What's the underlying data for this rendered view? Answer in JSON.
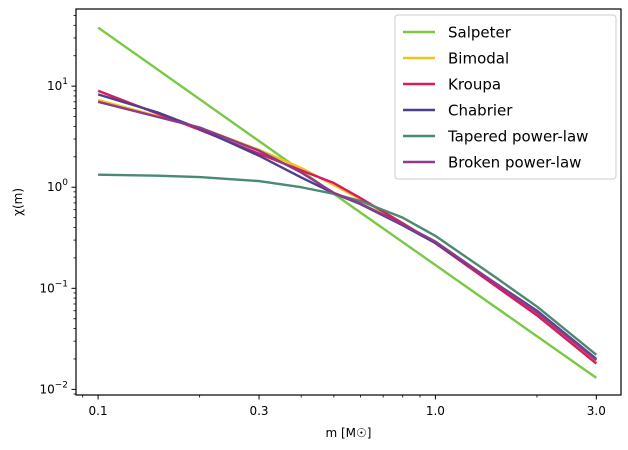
{
  "chart_data": {
    "type": "line",
    "title": "",
    "xlabel": "m [M☉]",
    "ylabel": "χ(m)",
    "x_scale": "log",
    "y_scale": "log",
    "xlim": [
      0.086,
      3.55
    ],
    "ylim": [
      0.0088,
      58
    ],
    "x_ticks": [
      {
        "value": 0.1,
        "label": "0.1"
      },
      {
        "value": 0.3,
        "label": "0.3"
      },
      {
        "value": 1.0,
        "label": "1.0"
      },
      {
        "value": 3.0,
        "label": "3.0"
      }
    ],
    "y_ticks": [
      {
        "value": 0.01,
        "base": "10",
        "exp": "−2"
      },
      {
        "value": 0.1,
        "base": "10",
        "exp": "−1"
      },
      {
        "value": 1,
        "base": "10",
        "exp": "0"
      },
      {
        "value": 10,
        "base": "10",
        "exp": "1"
      }
    ],
    "grid": false,
    "legend_position": "top-right",
    "series": [
      {
        "name": "Salpeter",
        "color": "#7ac943",
        "points": [
          [
            0.1,
            38
          ],
          [
            0.5,
            0.86
          ],
          [
            3.0,
            0.013
          ]
        ]
      },
      {
        "name": "Bimodal",
        "color": "#f0c419",
        "points": [
          [
            0.1,
            7.3
          ],
          [
            0.2,
            3.9
          ],
          [
            0.3,
            2.35
          ],
          [
            0.4,
            1.55
          ],
          [
            0.5,
            1.05
          ],
          [
            0.6,
            0.76
          ],
          [
            0.8,
            0.44
          ],
          [
            1.0,
            0.28
          ],
          [
            2.0,
            0.055
          ],
          [
            3.0,
            0.0185
          ]
        ]
      },
      {
        "name": "Kroupa",
        "color": "#d81b60",
        "points": [
          [
            0.1,
            9.0
          ],
          [
            0.2,
            3.7
          ],
          [
            0.3,
            2.15
          ],
          [
            0.4,
            1.47
          ],
          [
            0.5,
            1.1
          ],
          [
            0.6,
            0.78
          ],
          [
            0.8,
            0.44
          ],
          [
            1.0,
            0.28
          ],
          [
            2.0,
            0.054
          ],
          [
            3.0,
            0.018
          ]
        ]
      },
      {
        "name": "Chabrier",
        "color": "#4e3f8c",
        "points": [
          [
            0.1,
            8.3
          ],
          [
            0.15,
            5.5
          ],
          [
            0.2,
            3.8
          ],
          [
            0.3,
            2.05
          ],
          [
            0.4,
            1.25
          ],
          [
            0.5,
            0.87
          ],
          [
            0.6,
            0.68
          ],
          [
            0.8,
            0.42
          ],
          [
            1.0,
            0.28
          ],
          [
            2.0,
            0.06
          ],
          [
            3.0,
            0.02
          ]
        ]
      },
      {
        "name": "Tapered power-law",
        "color": "#4a8a73",
        "points": [
          [
            0.1,
            1.33
          ],
          [
            0.15,
            1.3
          ],
          [
            0.2,
            1.26
          ],
          [
            0.3,
            1.15
          ],
          [
            0.4,
            1.0
          ],
          [
            0.5,
            0.86
          ],
          [
            0.6,
            0.73
          ],
          [
            0.8,
            0.5
          ],
          [
            1.0,
            0.33
          ],
          [
            1.5,
            0.13
          ],
          [
            2.0,
            0.066
          ],
          [
            3.0,
            0.022
          ]
        ]
      },
      {
        "name": "Broken power-law",
        "color": "#8e3a8c",
        "points": [
          [
            0.1,
            7.0
          ],
          [
            0.2,
            3.9
          ],
          [
            0.3,
            2.3
          ],
          [
            0.4,
            1.4
          ],
          [
            0.5,
            0.88
          ],
          [
            0.6,
            0.69
          ],
          [
            0.8,
            0.43
          ],
          [
            1.0,
            0.29
          ],
          [
            2.0,
            0.058
          ],
          [
            3.0,
            0.0195
          ]
        ]
      }
    ]
  }
}
